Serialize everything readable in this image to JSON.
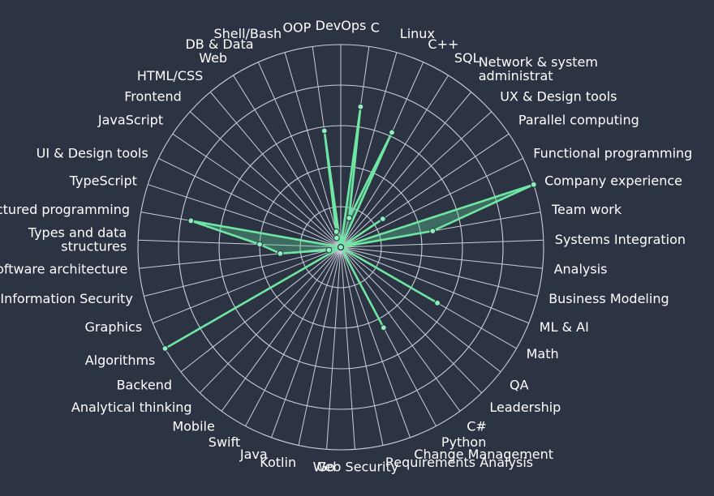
{
  "chart_data": {
    "type": "radar",
    "axis_max": 100,
    "grid_rings": 5,
    "colors": {
      "background": "#2c3443",
      "series": "#6fe6a3",
      "grid": "#c9ced8",
      "text": "#ffffff"
    },
    "axes": [
      {
        "label": "DevOps",
        "value": 0
      },
      {
        "label": "C",
        "value": 70
      },
      {
        "label": "Linux",
        "value": 15
      },
      {
        "label": "C++",
        "value": 62
      },
      {
        "label": "SQL",
        "value": 0
      },
      {
        "label": "Network & system administrat",
        "value": 0
      },
      {
        "label": "UX & Design tools",
        "value": 0
      },
      {
        "label": "Parallel computing",
        "value": 25
      },
      {
        "label": "Functional programming",
        "value": 0
      },
      {
        "label": "Company experience",
        "value": 100
      },
      {
        "label": "Team work",
        "value": 46
      },
      {
        "label": "Systems Integration",
        "value": 0
      },
      {
        "label": "Analysis",
        "value": 0
      },
      {
        "label": "Business Modeling",
        "value": 0
      },
      {
        "label": "ML & AI",
        "value": 0
      },
      {
        "label": "Math",
        "value": 55
      },
      {
        "label": "QA",
        "value": 0
      },
      {
        "label": "Leadership",
        "value": 0
      },
      {
        "label": "C#",
        "value": 0
      },
      {
        "label": "Python",
        "value": 45
      },
      {
        "label": "Change Management",
        "value": 0
      },
      {
        "label": "Requirements Analysis",
        "value": 0
      },
      {
        "label": "Web Security",
        "value": 0
      },
      {
        "label": "Go",
        "value": 0
      },
      {
        "label": "Kotlin",
        "value": 0
      },
      {
        "label": "Java",
        "value": 0
      },
      {
        "label": "Swift",
        "value": 0
      },
      {
        "label": "Mobile",
        "value": 0
      },
      {
        "label": "Analytical thinking",
        "value": 0
      },
      {
        "label": "Backend",
        "value": 0
      },
      {
        "label": "Algorithms",
        "value": 100
      },
      {
        "label": "Graphics",
        "value": 0
      },
      {
        "label": "Information Security",
        "value": 6
      },
      {
        "label": "Software architecture",
        "value": 30
      },
      {
        "label": "Types and data structures",
        "value": 40
      },
      {
        "label": "Structured programming",
        "value": 75
      },
      {
        "label": "TypeScript",
        "value": 0
      },
      {
        "label": "UI & Design tools",
        "value": 0
      },
      {
        "label": "JavaScript",
        "value": 0
      },
      {
        "label": "Frontend",
        "value": 0
      },
      {
        "label": "HTML/CSS",
        "value": 0
      },
      {
        "label": "Web",
        "value": 0
      },
      {
        "label": "DB & Data",
        "value": 5
      },
      {
        "label": "Shell/Bash",
        "value": 8
      },
      {
        "label": "OOP",
        "value": 58
      }
    ]
  }
}
